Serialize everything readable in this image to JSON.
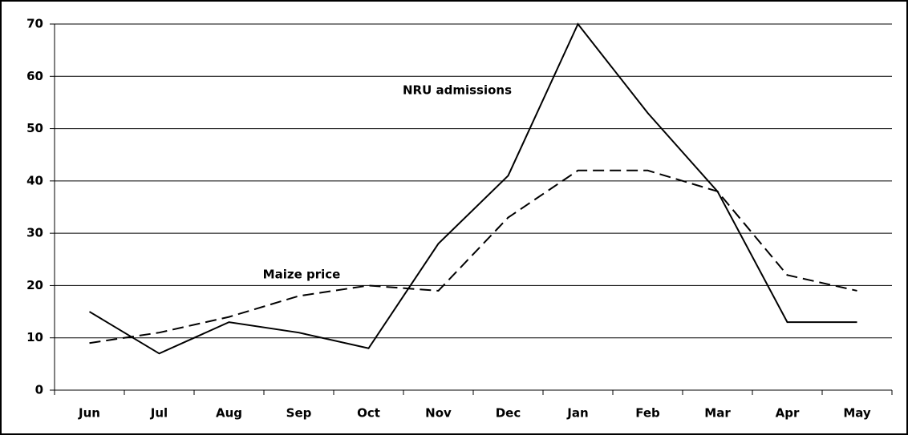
{
  "chart_data": {
    "type": "line",
    "categories": [
      "Jun",
      "Jul",
      "Aug",
      "Sep",
      "Oct",
      "Nov",
      "Dec",
      "Jan",
      "Feb",
      "Mar",
      "Apr",
      "May"
    ],
    "series": [
      {
        "name": "NRU admissions",
        "color": "#000000",
        "line_style": "solid",
        "values": [
          15,
          7,
          13,
          11,
          8,
          28,
          41,
          70,
          53,
          38,
          13,
          13
        ]
      },
      {
        "name": "Maize price",
        "color": "#000000",
        "line_style": "dashed",
        "values": [
          9,
          11,
          14,
          18,
          20,
          19,
          33,
          42,
          42,
          38,
          22,
          19
        ]
      }
    ],
    "ylim": [
      0,
      70
    ],
    "yticks": [
      0,
      10,
      20,
      30,
      40,
      50,
      60,
      70
    ],
    "grid": true
  }
}
